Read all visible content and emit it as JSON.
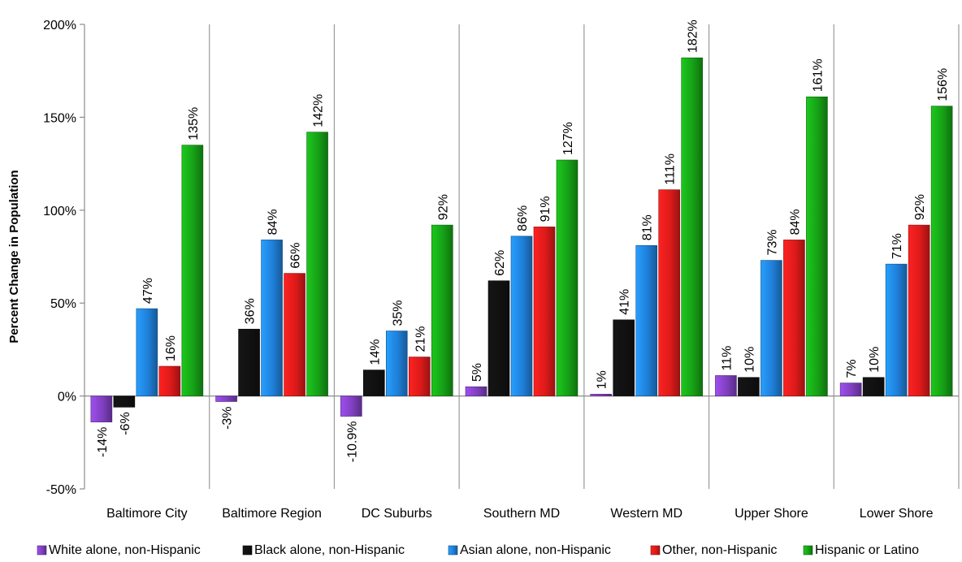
{
  "chart_data": {
    "type": "bar",
    "ylabel": "Percent Change in Population",
    "ylim": [
      -50,
      200
    ],
    "yticks": [
      -50,
      0,
      50,
      100,
      150,
      200
    ],
    "ytick_labels": [
      "-50%",
      "0%",
      "50%",
      "100%",
      "150%",
      "200%"
    ],
    "categories": [
      "Baltimore City",
      "Baltimore Region",
      "DC Suburbs",
      "Southern MD",
      "Western MD",
      "Upper Shore",
      "Lower Shore"
    ],
    "series": [
      {
        "name": "White alone, non-Hispanic",
        "color": "#7f3fbf",
        "values": [
          -14,
          -3,
          -10.9,
          5,
          1,
          11,
          7
        ],
        "labels": [
          "-14%",
          "-3%",
          "-10.9%",
          "5%",
          "1%",
          "11%",
          "7%"
        ]
      },
      {
        "name": "Black alone, non-Hispanic",
        "color": "#111111",
        "values": [
          -6,
          36,
          14,
          62,
          41,
          10,
          10
        ],
        "labels": [
          "-6%",
          "36%",
          "14%",
          "62%",
          "41%",
          "10%",
          "10%"
        ]
      },
      {
        "name": "Asian alone, non-Hispanic",
        "color": "#1f7fd8",
        "values": [
          47,
          84,
          35,
          86,
          81,
          73,
          71
        ],
        "labels": [
          "47%",
          "84%",
          "35%",
          "86%",
          "81%",
          "73%",
          "71%"
        ]
      },
      {
        "name": "Other, non-Hispanic",
        "color": "#dd1a1a",
        "values": [
          16,
          66,
          21,
          91,
          111,
          84,
          92
        ],
        "labels": [
          "16%",
          "66%",
          "21%",
          "91%",
          "111%",
          "84%",
          "92%"
        ]
      },
      {
        "name": "Hispanic or Latino",
        "color": "#16a016",
        "values": [
          135,
          142,
          92,
          127,
          182,
          161,
          156
        ],
        "labels": [
          "135%",
          "142%",
          "92%",
          "127%",
          "182%",
          "161%",
          "156%"
        ]
      }
    ],
    "grid": false,
    "category_separators": true,
    "legend_position": "bottom"
  }
}
